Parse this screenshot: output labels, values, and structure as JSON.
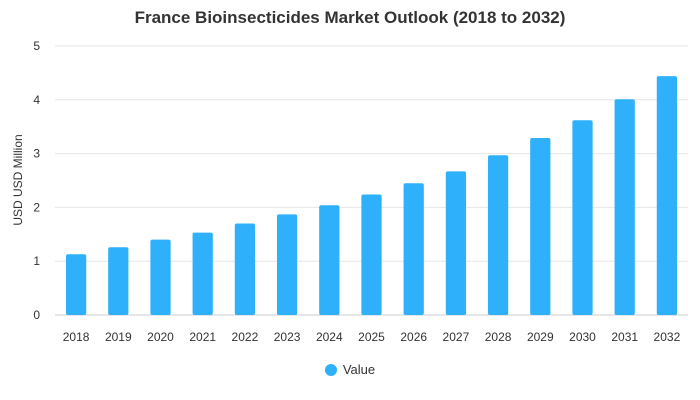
{
  "colors": {
    "bar": "#2eb0fb",
    "grid": "#e6e6e6",
    "text": "#333333"
  },
  "chart_data": {
    "type": "bar",
    "title": "France Bioinsecticides Market Outlook (2018 to 2032)",
    "xlabel": "",
    "ylabel": "USD USD Million",
    "categories": [
      "2018",
      "2019",
      "2020",
      "2021",
      "2022",
      "2023",
      "2024",
      "2025",
      "2026",
      "2027",
      "2028",
      "2029",
      "2030",
      "2031",
      "2032"
    ],
    "series": [
      {
        "name": "Value",
        "values": [
          1.13,
          1.26,
          1.4,
          1.53,
          1.7,
          1.87,
          2.04,
          2.24,
          2.45,
          2.67,
          2.97,
          3.29,
          3.62,
          4.01,
          4.44
        ]
      }
    ],
    "ylim": [
      0,
      5
    ],
    "yticks": [
      "0",
      "1",
      "2",
      "3",
      "4",
      "5"
    ],
    "grid": true,
    "legend_position": "bottom"
  }
}
